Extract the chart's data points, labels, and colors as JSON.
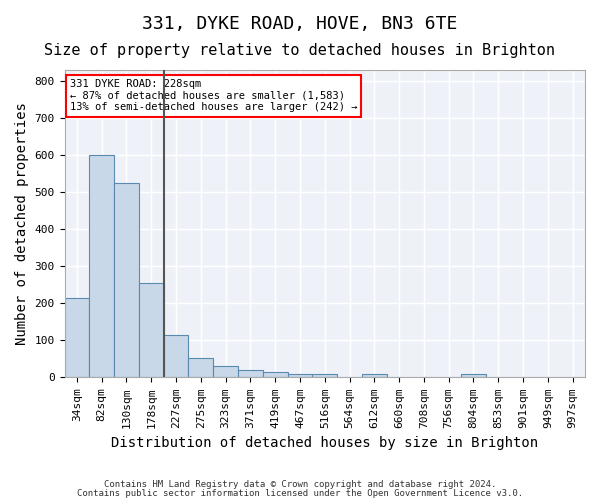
{
  "title1": "331, DYKE ROAD, HOVE, BN3 6TE",
  "title2": "Size of property relative to detached houses in Brighton",
  "xlabel": "Distribution of detached houses by size in Brighton",
  "ylabel": "Number of detached properties",
  "bar_labels": [
    "34sqm",
    "82sqm",
    "130sqm",
    "178sqm",
    "227sqm",
    "275sqm",
    "323sqm",
    "371sqm",
    "419sqm",
    "467sqm",
    "516sqm",
    "564sqm",
    "612sqm",
    "660sqm",
    "708sqm",
    "756sqm",
    "804sqm",
    "853sqm",
    "901sqm",
    "949sqm",
    "997sqm"
  ],
  "bar_heights": [
    215,
    600,
    525,
    255,
    115,
    52,
    30,
    20,
    15,
    10,
    10,
    0,
    10,
    0,
    0,
    0,
    10,
    0,
    0,
    0,
    0
  ],
  "bar_color": "#c8d8e8",
  "bar_edge_color": "#5a8ab0",
  "vline_x_index": 4,
  "vline_color": "#555555",
  "annotation_text": "331 DYKE ROAD: 228sqm\n← 87% of detached houses are smaller (1,583)\n13% of semi-detached houses are larger (242) →",
  "annotation_box_color": "white",
  "annotation_box_edge_color": "red",
  "bg_color": "#eef2f8",
  "grid_color": "white",
  "ylim": [
    0,
    830
  ],
  "yticks": [
    0,
    100,
    200,
    300,
    400,
    500,
    600,
    700,
    800
  ],
  "footer1": "Contains HM Land Registry data © Crown copyright and database right 2024.",
  "footer2": "Contains public sector information licensed under the Open Government Licence v3.0.",
  "title1_fontsize": 13,
  "title2_fontsize": 11,
  "tick_fontsize": 8,
  "ylabel_fontsize": 10,
  "xlabel_fontsize": 10
}
